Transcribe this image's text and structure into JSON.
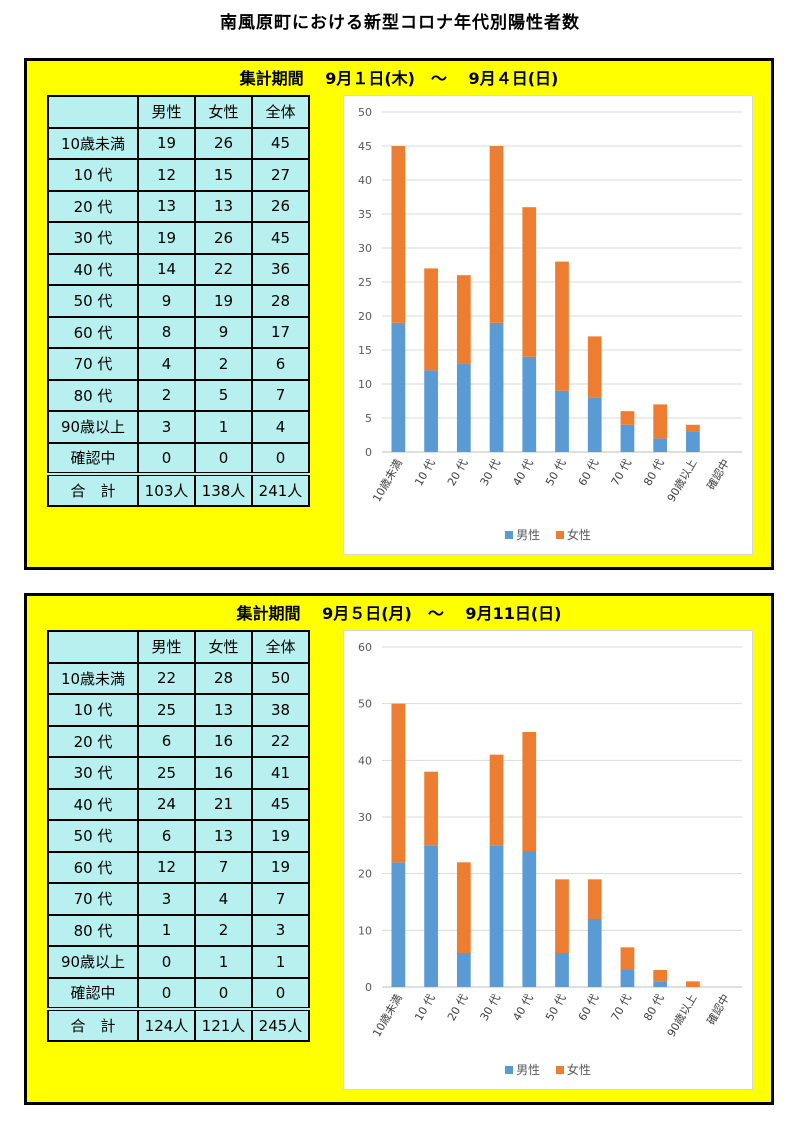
{
  "title": "南風原町における新型コロナ年代別陽性者数",
  "colors": {
    "male": "#5b9bd5",
    "female": "#ed7d31",
    "panel_bg": "#ffff00",
    "table_bg": "#b8f0f0"
  },
  "headers": [
    "",
    "男性",
    "女性",
    "全体"
  ],
  "legend": {
    "male": "男性",
    "female": "女性"
  },
  "sections": [
    {
      "period": "集計期間　 9月１日(木)　～　 9月４日(日)",
      "rows": [
        {
          "label": "10歳未満",
          "male": "19",
          "female": "26",
          "total": "45"
        },
        {
          "label": "10 代",
          "male": "12",
          "female": "15",
          "total": "27"
        },
        {
          "label": "20 代",
          "male": "13",
          "female": "13",
          "total": "26"
        },
        {
          "label": "30 代",
          "male": "19",
          "female": "26",
          "total": "45"
        },
        {
          "label": "40 代",
          "male": "14",
          "female": "22",
          "total": "36"
        },
        {
          "label": "50 代",
          "male": "9",
          "female": "19",
          "total": "28"
        },
        {
          "label": "60 代",
          "male": "8",
          "female": "9",
          "total": "17"
        },
        {
          "label": "70 代",
          "male": "4",
          "female": "2",
          "total": "6"
        },
        {
          "label": "80 代",
          "male": "2",
          "female": "5",
          "total": "7"
        },
        {
          "label": "90歳以上",
          "male": "3",
          "female": "1",
          "total": "4"
        },
        {
          "label": "確認中",
          "male": "0",
          "female": "0",
          "total": "0"
        }
      ],
      "total": {
        "label": "合　計",
        "male": "103人",
        "female": "138人",
        "total": "241人"
      }
    },
    {
      "period": "集計期間　 9月５日(月)　～　 9月11日(日)",
      "rows": [
        {
          "label": "10歳未満",
          "male": "22",
          "female": "28",
          "total": "50"
        },
        {
          "label": "10 代",
          "male": "25",
          "female": "13",
          "total": "38"
        },
        {
          "label": "20 代",
          "male": "6",
          "female": "16",
          "total": "22"
        },
        {
          "label": "30 代",
          "male": "25",
          "female": "16",
          "total": "41"
        },
        {
          "label": "40 代",
          "male": "24",
          "female": "21",
          "total": "45"
        },
        {
          "label": "50 代",
          "male": "6",
          "female": "13",
          "total": "19"
        },
        {
          "label": "60 代",
          "male": "12",
          "female": "7",
          "total": "19"
        },
        {
          "label": "70 代",
          "male": "3",
          "female": "4",
          "total": "7"
        },
        {
          "label": "80 代",
          "male": "1",
          "female": "2",
          "total": "3"
        },
        {
          "label": "90歳以上",
          "male": "0",
          "female": "1",
          "total": "1"
        },
        {
          "label": "確認中",
          "male": "0",
          "female": "0",
          "total": "0"
        }
      ],
      "total": {
        "label": "合　計",
        "male": "124人",
        "female": "121人",
        "total": "245人"
      }
    }
  ],
  "chart_data": [
    {
      "type": "bar",
      "stacked": true,
      "categories": [
        "10歳未満",
        "10 代",
        "20 代",
        "30 代",
        "40 代",
        "50 代",
        "60 代",
        "70 代",
        "80 代",
        "90歳以上",
        "確認中"
      ],
      "series": [
        {
          "name": "男性",
          "values": [
            19,
            12,
            13,
            19,
            14,
            9,
            8,
            4,
            2,
            3,
            0
          ]
        },
        {
          "name": "女性",
          "values": [
            26,
            15,
            13,
            26,
            22,
            19,
            9,
            2,
            5,
            1,
            0
          ]
        }
      ],
      "yticks": [
        0,
        5,
        10,
        15,
        20,
        25,
        30,
        35,
        40,
        45,
        50
      ],
      "ylim": [
        0,
        50
      ],
      "legend_position": "bottom"
    },
    {
      "type": "bar",
      "stacked": true,
      "categories": [
        "10歳未満",
        "10 代",
        "20 代",
        "30 代",
        "40 代",
        "50 代",
        "60 代",
        "70 代",
        "80 代",
        "90歳以上",
        "確認中"
      ],
      "series": [
        {
          "name": "男性",
          "values": [
            22,
            25,
            6,
            25,
            24,
            6,
            12,
            3,
            1,
            0,
            0
          ]
        },
        {
          "name": "女性",
          "values": [
            28,
            13,
            16,
            16,
            21,
            13,
            7,
            4,
            2,
            1,
            0
          ]
        }
      ],
      "yticks": [
        0,
        10,
        20,
        30,
        40,
        50,
        60
      ],
      "ylim": [
        0,
        60
      ],
      "legend_position": "bottom"
    }
  ]
}
